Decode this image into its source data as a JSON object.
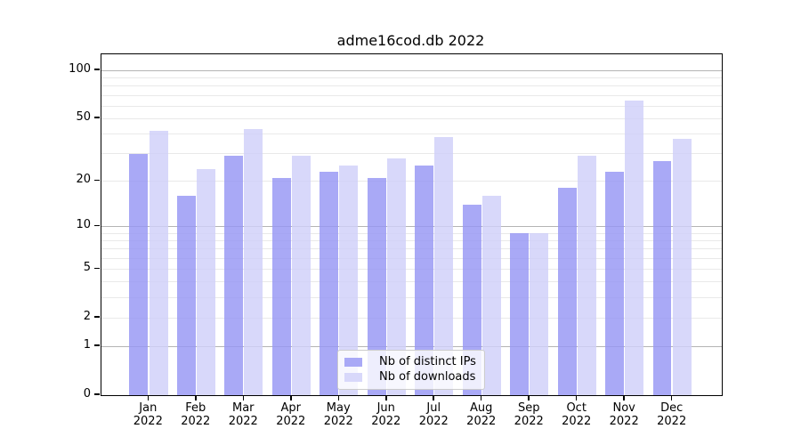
{
  "title": "adme16cod.db 2022",
  "chart_data": {
    "type": "bar",
    "title": "adme16cod.db 2022",
    "y_scale": "log-like (y proportional to log10(1+x))",
    "ylim": [
      0,
      126
    ],
    "grid": "horizontal only; major lines at 1, 10, 100; minor lines at 2-9, 20-90",
    "legend_position": "lower center",
    "year": "2022",
    "months": [
      "Jan",
      "Feb",
      "Mar",
      "Apr",
      "May",
      "Jun",
      "Jul",
      "Aug",
      "Sep",
      "Oct",
      "Nov",
      "Dec"
    ],
    "categories": [
      "Jan 2022",
      "Feb 2022",
      "Mar 2022",
      "Apr 2022",
      "May 2022",
      "Jun 2022",
      "Jul 2022",
      "Aug 2022",
      "Sep 2022",
      "Oct 2022",
      "Nov 2022",
      "Dec 2022"
    ],
    "series": [
      {
        "name": "Nb of distinct IPs",
        "values": [
          30,
          16,
          29,
          21,
          23,
          21,
          25,
          14,
          9,
          18,
          23,
          27
        ]
      },
      {
        "name": "Nb of downloads",
        "values": [
          42,
          24,
          43,
          29,
          25,
          28,
          38,
          16,
          9,
          29,
          65,
          37
        ]
      }
    ],
    "y_ticks": [
      100,
      50,
      20,
      10,
      5,
      2,
      1,
      0
    ],
    "grid_major_values": [
      1,
      10,
      100
    ],
    "grid_minor_values": [
      2,
      3,
      4,
      5,
      6,
      7,
      8,
      9,
      20,
      30,
      40,
      50,
      60,
      70,
      80,
      90
    ],
    "legend": {
      "items": [
        "Nb of distinct IPs",
        "Nb of downloads"
      ]
    }
  },
  "colors": {
    "bar_ips": "rgba(150,150,244,0.82)",
    "bar_downloads": "rgba(207,207,249,0.82)",
    "legend_swatch_ips": "#a9a9f6",
    "legend_swatch_downloads": "#d8d8fa",
    "grid_major": "#b4b4b4",
    "grid_minor": "#e9e9e9",
    "spine": "#000000",
    "text": "#000000",
    "background": "#ffffff"
  }
}
